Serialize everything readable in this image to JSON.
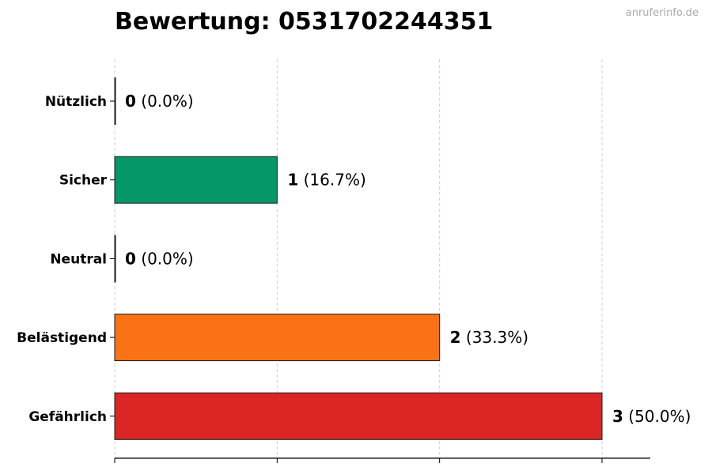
{
  "watermark": "anruferinfo.de",
  "chart_data": {
    "type": "bar",
    "orientation": "horizontal",
    "title": "Bewertung: 0531702244351",
    "xlabel": "",
    "ylabel": "",
    "xlim": [
      0,
      3.3
    ],
    "grid": "vertical dashed",
    "categories": [
      "Nützlich",
      "Sicher",
      "Neutral",
      "Belästigend",
      "Gefährlich"
    ],
    "values": [
      0,
      1,
      0,
      2,
      3
    ],
    "value_labels": [
      "0",
      "1",
      "0",
      "2",
      "3"
    ],
    "percent_labels": [
      "(0.0%)",
      "(16.7%)",
      "(0.0%)",
      "(33.3%)",
      "(50.0%)"
    ],
    "colors": [
      "#009E73",
      "#059669",
      "#6b7280",
      "#f97316",
      "#dc2626"
    ]
  }
}
